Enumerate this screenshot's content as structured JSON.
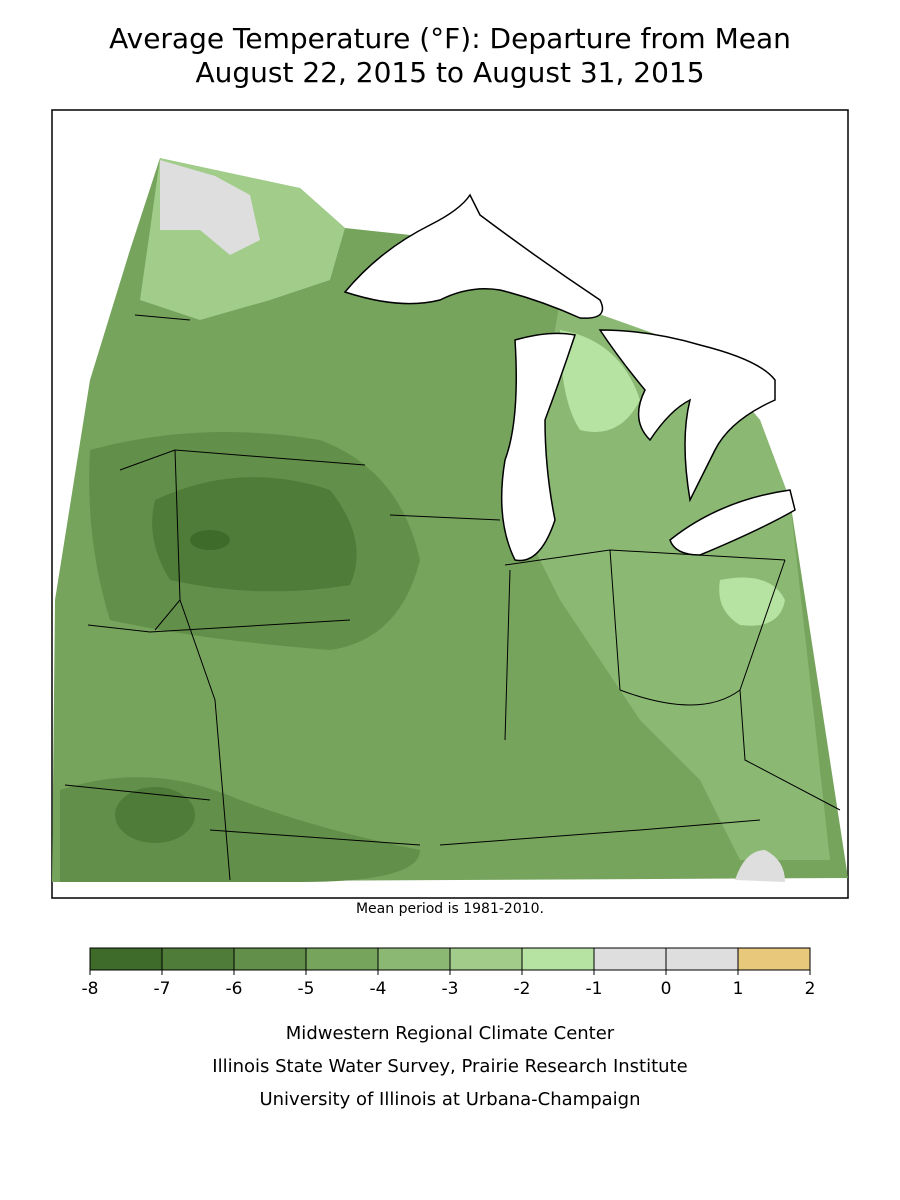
{
  "title": [
    "Average Temperature (°F): Departure from Mean",
    "August 22, 2015 to August 31, 2015"
  ],
  "note": "Mean period is 1981-2010.",
  "legend": {
    "ticks": [
      -8,
      -7,
      -6,
      -5,
      -4,
      -3,
      -2,
      -1,
      0,
      1,
      2
    ],
    "colors": [
      "#3e6b2a",
      "#4f7d39",
      "#62904a",
      "#76a45d",
      "#8bb873",
      "#a1cc8a",
      "#b6e2a2",
      "#dedede",
      "#dedede",
      "#e8c87a"
    ]
  },
  "credits": [
    "Midwestern Regional Climate Center",
    "Illinois State Water Survey, Prairie Research Institute",
    "University of Illinois at Urbana-Champaign"
  ]
}
